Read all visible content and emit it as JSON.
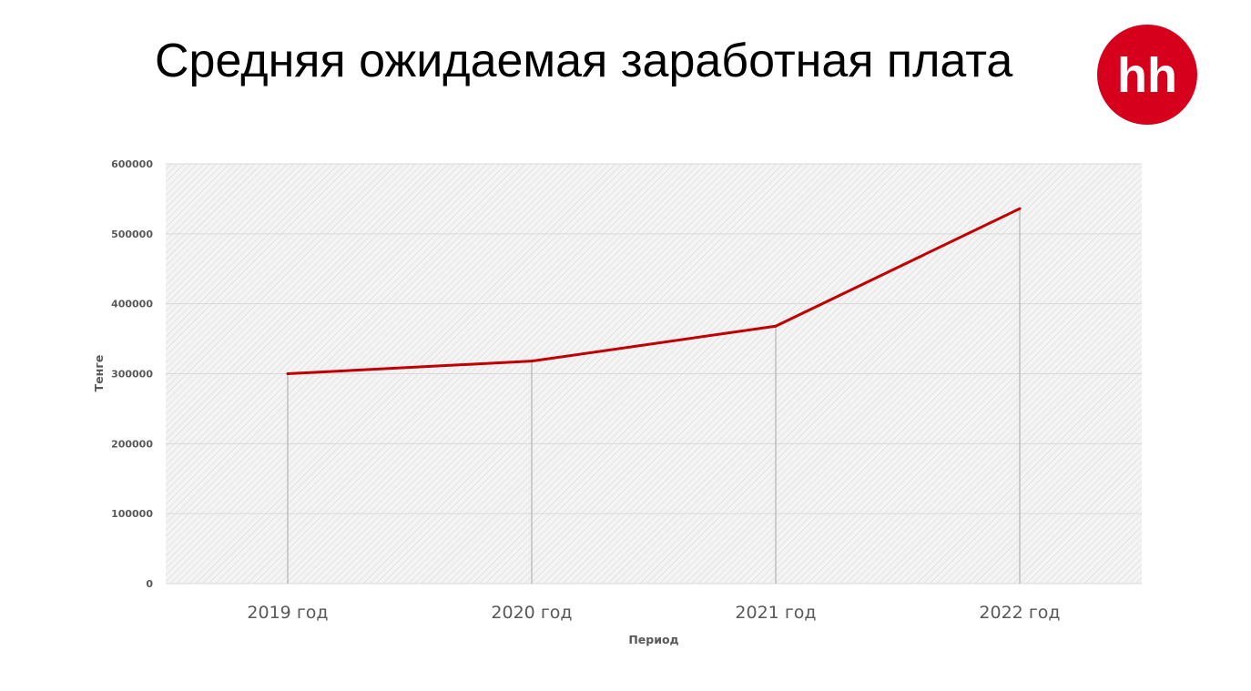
{
  "slide": {
    "title": "Средняя ожидаемая заработная плата"
  },
  "logo": {
    "text": "hh",
    "color": "#d6001c",
    "icon": "hh-logo-icon"
  },
  "chart_data": {
    "type": "line",
    "categories": [
      "2019 год",
      "2020 год",
      "2021 год",
      "2022 год"
    ],
    "series": [
      {
        "values": [
          300000,
          318000,
          368000,
          536000
        ],
        "color": "#c00000"
      }
    ],
    "xlabel": "Период",
    "ylabel": "Тенге",
    "ylim": [
      0,
      600000
    ],
    "yticks": [
      0,
      100000,
      200000,
      300000,
      400000,
      500000,
      600000
    ],
    "grid": true,
    "drop_lines": true,
    "plot_background": "hatched light gray"
  }
}
